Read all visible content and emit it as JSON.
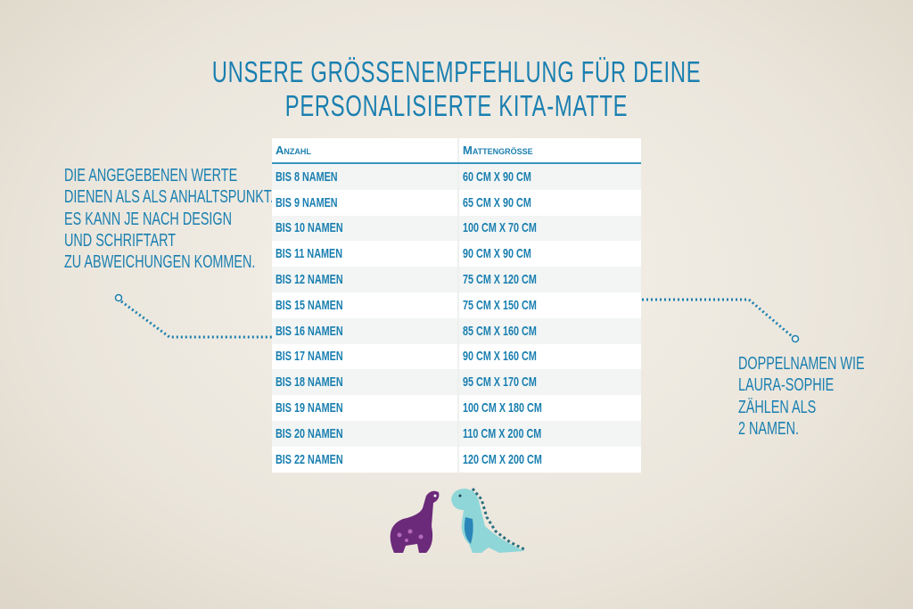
{
  "title": "Unsere Größenempfehlung für deine personalisierte Kita-Matte",
  "left_note": [
    "Die angegebenen Werte",
    "dienen als als Anhaltspunkt.",
    "Es kann je nach Design",
    "und Schriftart",
    "zu Abweichungen kommen."
  ],
  "right_note": [
    "Doppelnamen wie",
    "Laura-Sophie",
    "zählen als",
    "2 Namen."
  ],
  "table": {
    "headers": [
      "Anzahl",
      "Mattengröße"
    ],
    "rows": [
      [
        "bis 8 Namen",
        "60 cm x 90 cm"
      ],
      [
        "bis 9 Namen",
        "65 cm x 90 cm"
      ],
      [
        "bis 10 Namen",
        "100 cm x 70 cm"
      ],
      [
        "bis 11 Namen",
        "90 cm x 90 cm"
      ],
      [
        "bis 12 Namen",
        "75 cm x 120 cm"
      ],
      [
        "bis 15 Namen",
        "75 cm x 150 cm"
      ],
      [
        "bis 16 Namen",
        "85 cm x 160 cm"
      ],
      [
        "bis 17 Namen",
        "90 cm x 160 cm"
      ],
      [
        "bis 18 Namen",
        "95 cm x 170 cm"
      ],
      [
        "bis 19 Namen",
        "100 cm x 180 cm"
      ],
      [
        "bis 20 Namen",
        "110 cm x 200 cm"
      ],
      [
        "bis 22 Namen",
        "120 cm x 200 cm"
      ]
    ]
  },
  "colors": {
    "text": "#1a7fb0",
    "dino_purple": "#6b2a7a",
    "dino_teal": "#8fd6d8"
  }
}
